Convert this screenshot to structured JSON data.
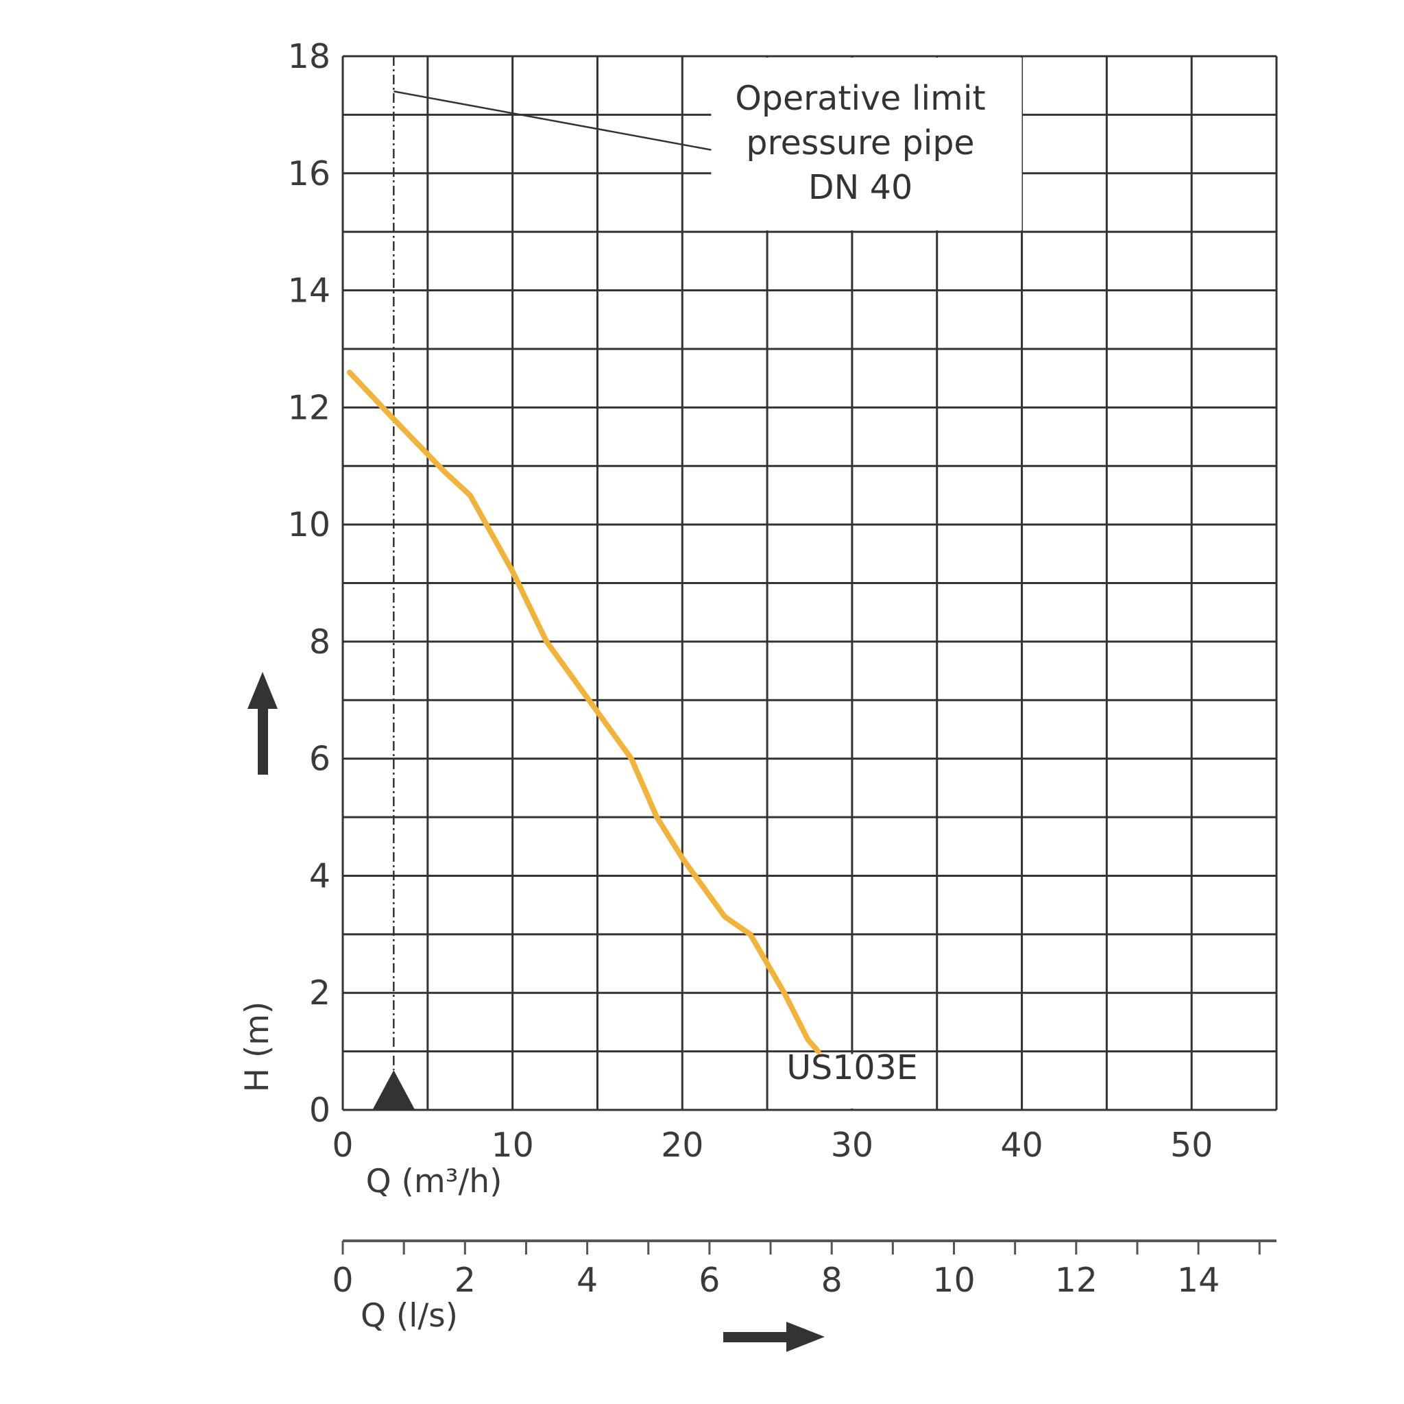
{
  "chart_data": {
    "type": "line",
    "xlabel": "Q (m³/h)",
    "xlabel_secondary": "Q (l/s)",
    "ylabel": "H (m)",
    "xlim": [
      0,
      55
    ],
    "ylim": [
      0,
      18
    ],
    "x_ticks": [
      "0",
      "10",
      "20",
      "30",
      "40",
      "50"
    ],
    "x2_ticks": [
      "0",
      "2",
      "4",
      "6",
      "8",
      "10",
      "12",
      "14"
    ],
    "y_ticks": [
      "0",
      "2",
      "4",
      "6",
      "8",
      "10",
      "12",
      "14",
      "16",
      "18"
    ],
    "grid": true,
    "series": [
      {
        "name": "US103E",
        "color": "#F2B33D",
        "x": [
          0.4,
          3,
          6,
          7.5,
          10,
          12,
          14.5,
          17,
          18.5,
          20,
          22.5,
          24,
          26,
          27.4,
          28
        ],
        "y": [
          12.6,
          11.8,
          10.9,
          10.5,
          9.2,
          8.0,
          7.0,
          6.0,
          5.0,
          4.3,
          3.3,
          3.0,
          2.0,
          1.2,
          1.0
        ]
      }
    ],
    "annotations": {
      "operative_limit": {
        "lines": [
          "Operative limit",
          "pressure pipe",
          "DN 40"
        ],
        "line_x": [
          3,
          21.7
        ],
        "line_y": [
          17.4,
          16.4
        ]
      },
      "min_flow_marker_x": 3
    }
  }
}
